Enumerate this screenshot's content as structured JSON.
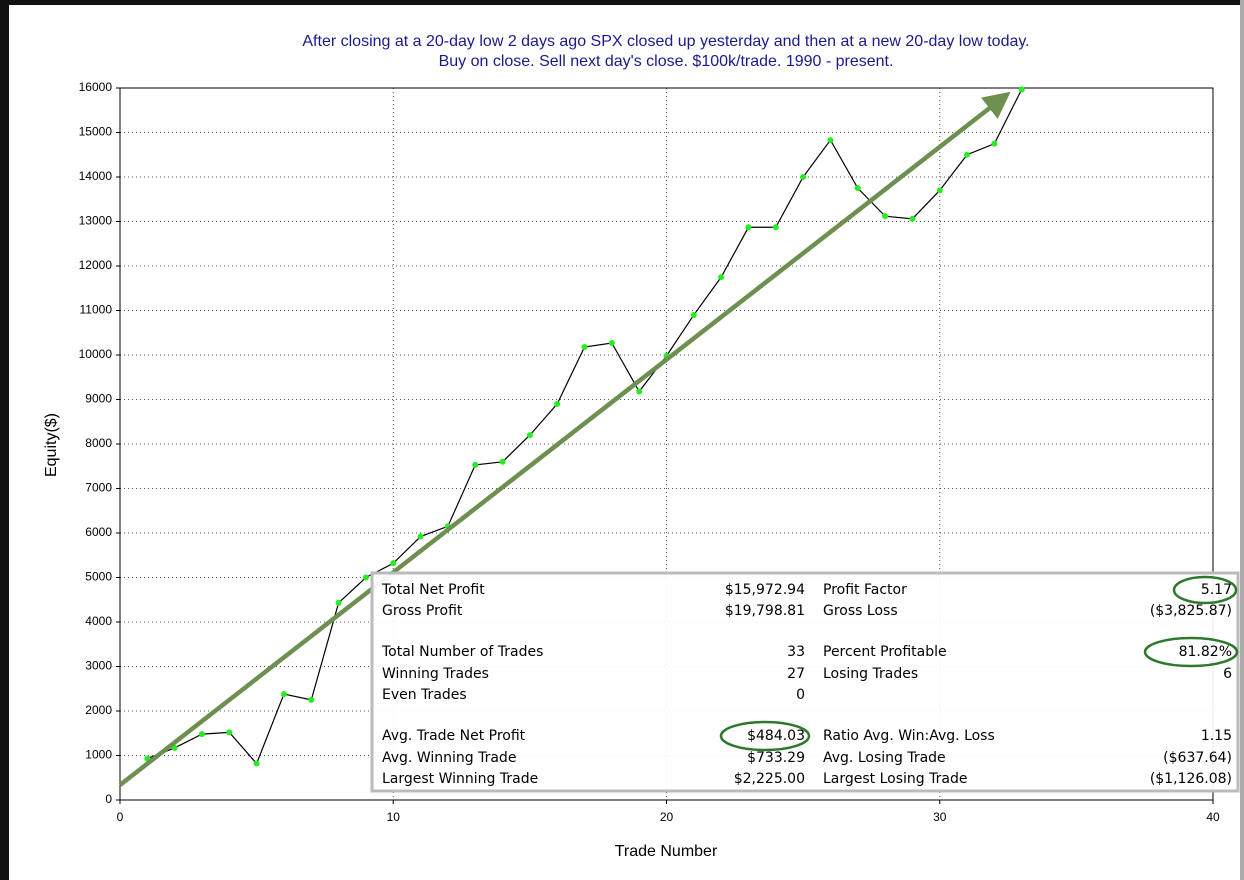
{
  "chart_data": {
    "type": "line",
    "title": "After closing at a 20-day low 2 days ago SPX closed up yesterday and then at a new 20-day low today.",
    "subtitle": "Buy on close. Sell next day's close. $100k/trade. 1990 - present.",
    "x_label": "Trade Number",
    "y_label": "Equity($)",
    "x": [
      1,
      2,
      3,
      4,
      5,
      6,
      7,
      8,
      9,
      10,
      11,
      12,
      13,
      14,
      15,
      16,
      17,
      18,
      19,
      20,
      21,
      22,
      23,
      24,
      25,
      26,
      27,
      28,
      29,
      30,
      31,
      32,
      33
    ],
    "series": [
      {
        "name": "Equity",
        "color": "#000000",
        "marker_color": "#22ee22",
        "values": [
          930,
          1170,
          1480,
          1520,
          820,
          2380,
          2250,
          4430,
          5000,
          5320,
          5920,
          6150,
          7530,
          7600,
          8200,
          8900,
          10180,
          10270,
          9180,
          9980,
          10900,
          11750,
          12870,
          12870,
          14000,
          14830,
          13750,
          13120,
          13060,
          13700,
          14500,
          14750,
          15970
        ]
      }
    ],
    "xlim": [
      0,
      40
    ],
    "xticks": [
      0,
      10,
      20,
      30,
      40
    ],
    "ylim": [
      0,
      16000
    ],
    "yticks": [
      0,
      1000,
      2000,
      3000,
      4000,
      5000,
      6000,
      7000,
      8000,
      9000,
      10000,
      11000,
      12000,
      13000,
      14000,
      15000,
      16000
    ],
    "grid": true,
    "stats": [
      {
        "left": [
          "Total Net Profit",
          "$15,972.94"
        ],
        "right": [
          "Profit Factor",
          "5.17"
        ]
      },
      {
        "left": [
          "Gross Profit",
          "$19,798.81"
        ],
        "right": [
          "Gross Loss",
          "($3,825.87)"
        ]
      },
      {
        "left": [
          "Total Number of Trades",
          "33"
        ],
        "right": [
          "Percent Profitable",
          "81.82%"
        ]
      },
      {
        "left": [
          "Winning Trades",
          "27"
        ],
        "right": [
          "Losing Trades",
          "6"
        ]
      },
      {
        "left": [
          "Even Trades",
          "0"
        ]
      },
      {
        "left": [
          "Avg. Trade Net Profit",
          "$484.03"
        ],
        "right": [
          "Ratio Avg. Win:Avg. Loss",
          "1.15"
        ]
      },
      {
        "left": [
          "Avg. Winning Trade",
          "$733.29"
        ],
        "right": [
          "Avg. Losing Trade",
          "($637.64)"
        ]
      },
      {
        "left": [
          "Largest Winning Trade",
          "$2,225.00"
        ],
        "right": [
          "Largest Losing Trade",
          "($1,126.08)"
        ]
      }
    ]
  }
}
